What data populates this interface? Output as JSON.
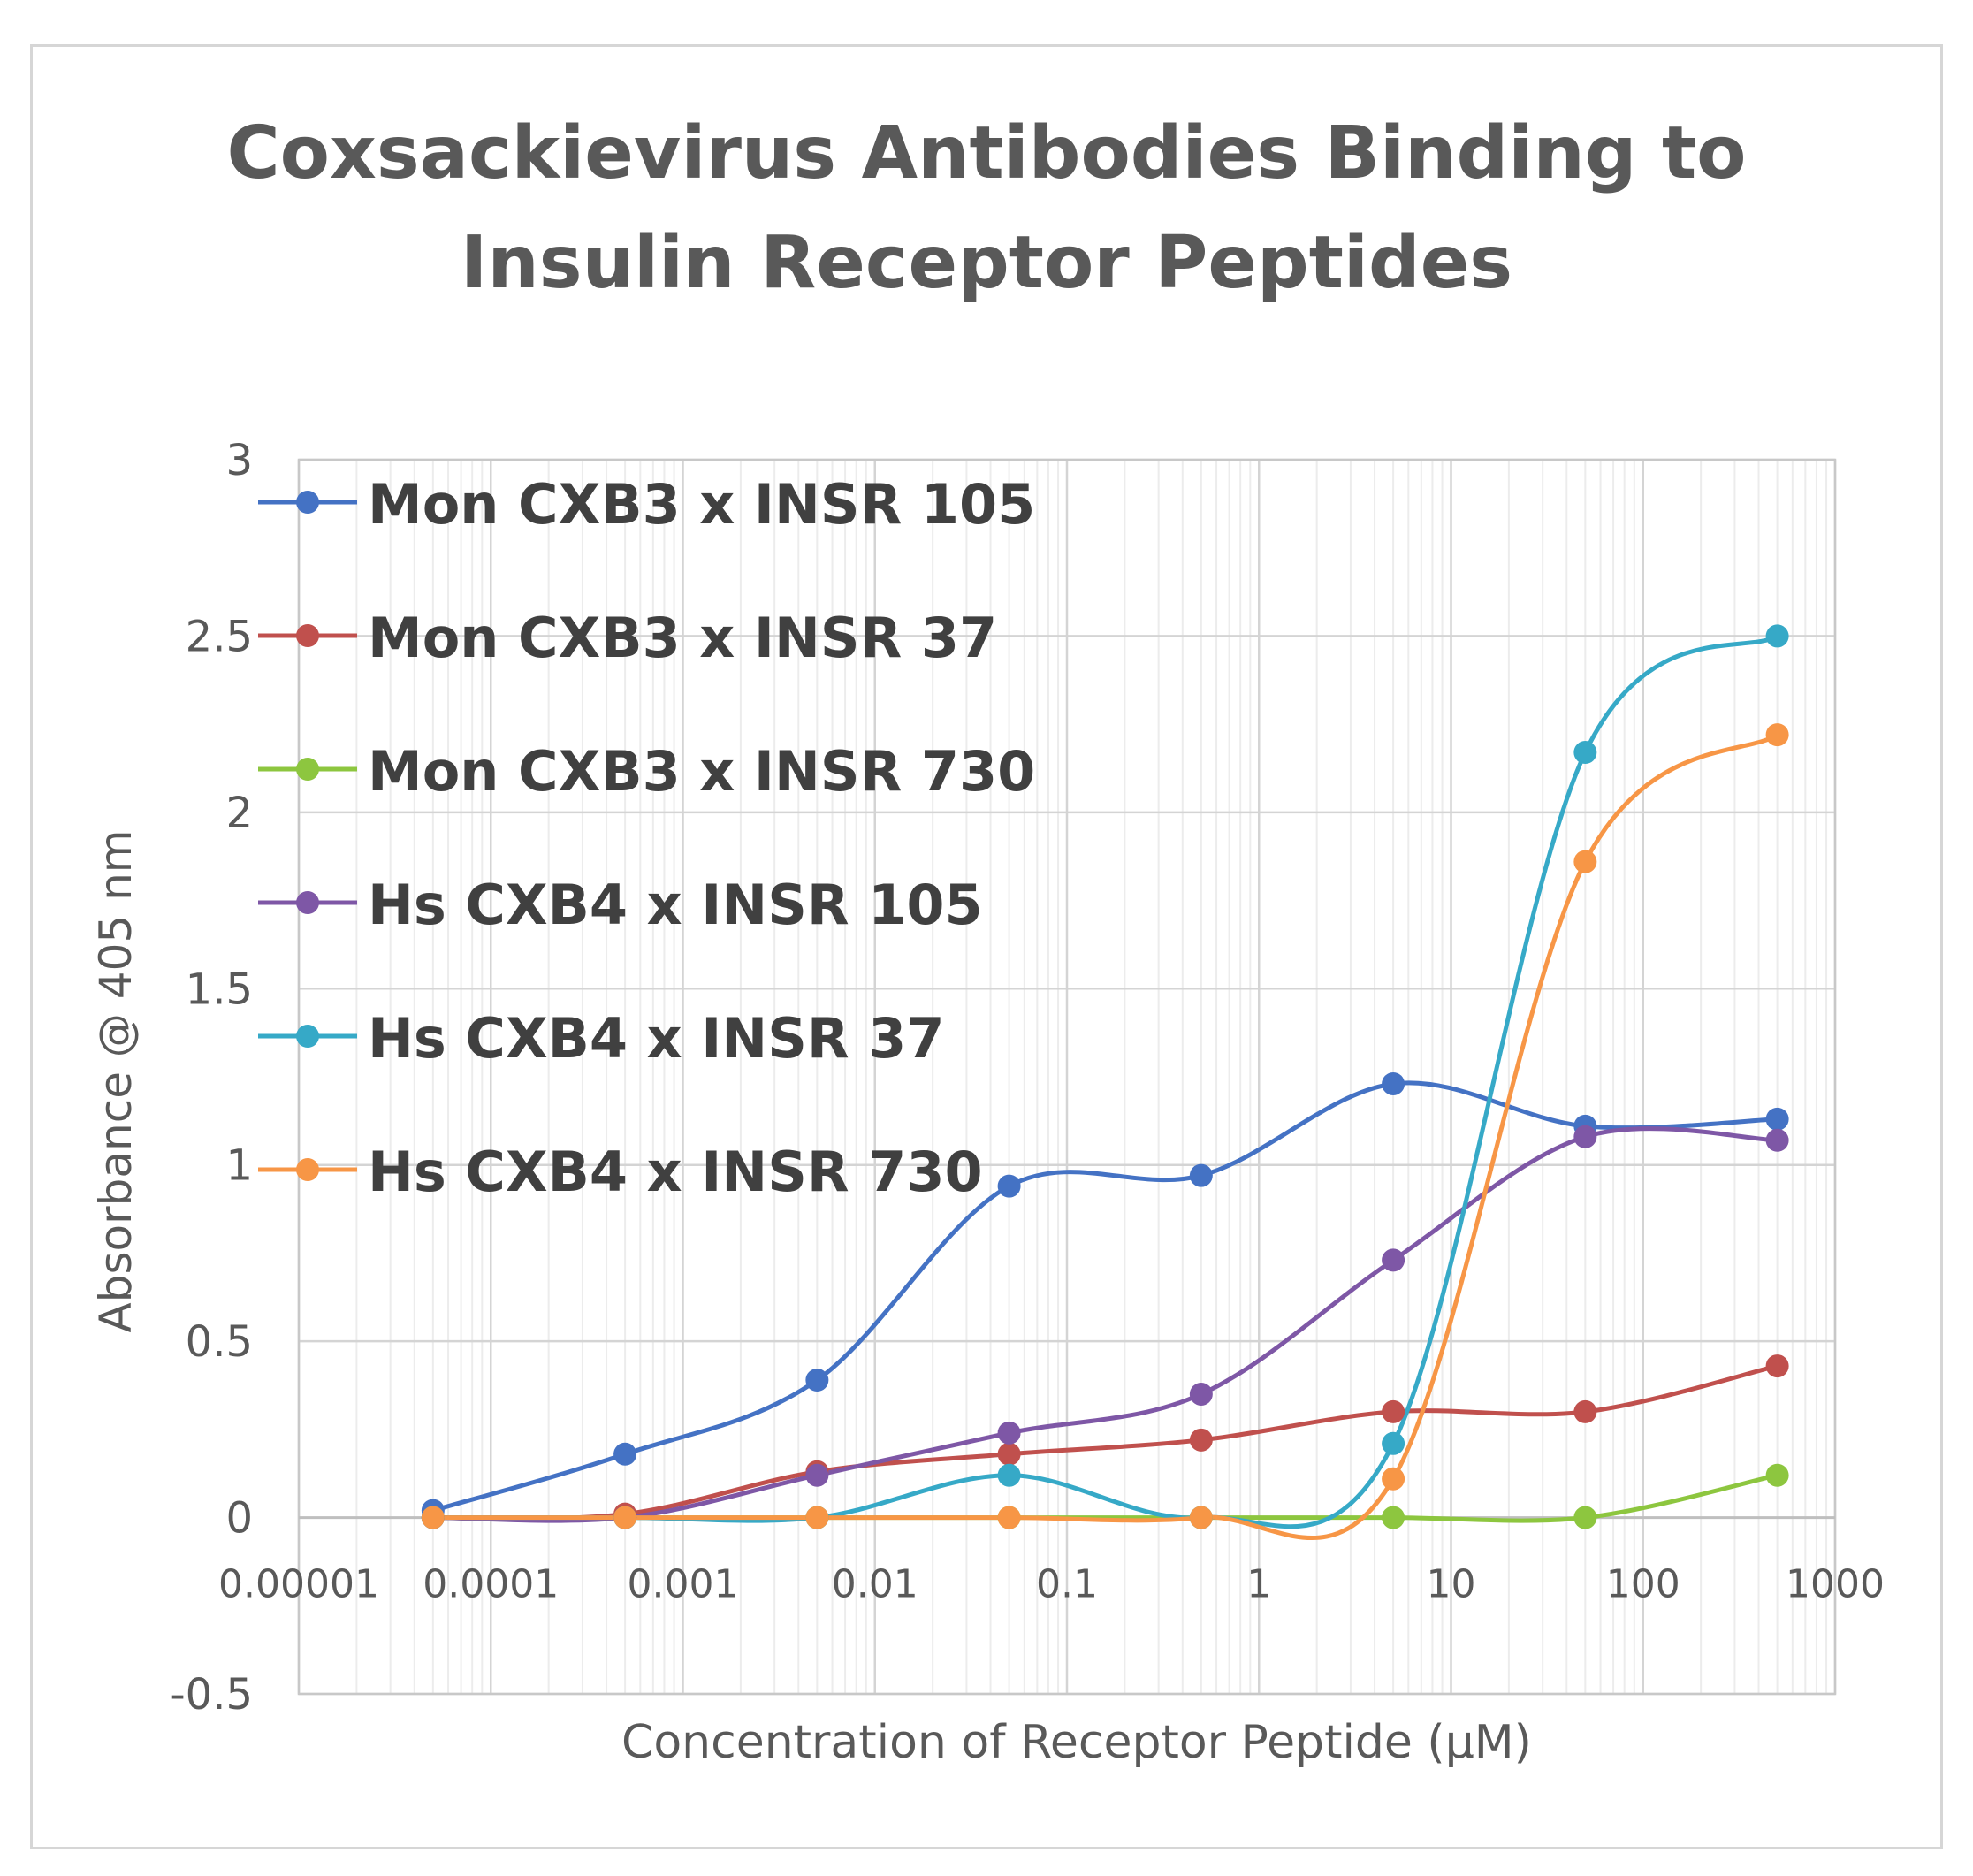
{
  "chart_data": {
    "type": "line",
    "title_lines": [
      "Coxsackievirus Antibodies Binding to",
      "Insulin Receptor Peptides"
    ],
    "xlabel": "Concentration of Receptor Peptide (µM)",
    "ylabel": "Absorbance @ 405 nm",
    "x_scale": "log",
    "xlim": [
      1e-05,
      1000
    ],
    "ylim": [
      -0.5,
      3
    ],
    "x_ticks": [
      1e-05,
      0.0001,
      0.001,
      0.01,
      0.1,
      1,
      10,
      100,
      1000
    ],
    "x_tick_labels": [
      "0.00001",
      "0.0001",
      "0.001",
      "0.01",
      "0.1",
      "1",
      "10",
      "100",
      "1000"
    ],
    "y_ticks": [
      -0.5,
      0,
      0.5,
      1,
      1.5,
      2,
      2.5,
      3
    ],
    "y_tick_labels": [
      "-0.5",
      "0",
      "0.5",
      "1",
      "1.5",
      "2",
      "2.5",
      "3"
    ],
    "grid": true,
    "legend_position": "top-left",
    "smooth": true,
    "x": [
      5e-05,
      0.0005,
      0.005,
      0.05,
      0.5,
      5,
      50,
      500
    ],
    "series": [
      {
        "name": "Mon CXB3 x INSR 105",
        "color": "#4472C4",
        "values": [
          0.02,
          0.18,
          0.39,
          0.94,
          0.97,
          1.23,
          1.11,
          1.13
        ]
      },
      {
        "name": "Mon CXB3 x INSR 37",
        "color": "#C0504D",
        "values": [
          0.0,
          0.01,
          0.13,
          0.18,
          0.22,
          0.3,
          0.3,
          0.43
        ]
      },
      {
        "name": "Mon CXB3 x INSR 730",
        "color": "#8DC63F",
        "values": [
          0.0,
          0.0,
          0.0,
          0.0,
          0.0,
          0.0,
          0.0,
          0.12
        ]
      },
      {
        "name": "Hs CXB4 x INSR 105",
        "color": "#7E57A6",
        "values": [
          0.0,
          0.0,
          0.12,
          0.24,
          0.35,
          0.73,
          1.08,
          1.07
        ]
      },
      {
        "name": "Hs CXB4 x INSR 37",
        "color": "#36A9C7",
        "values": [
          0.0,
          0.0,
          0.0,
          0.12,
          0.0,
          0.21,
          2.17,
          2.5
        ]
      },
      {
        "name": "Hs CXB4 x INSR 730",
        "color": "#F79646",
        "values": [
          0.0,
          0.0,
          0.0,
          0.0,
          0.0,
          0.11,
          1.86,
          2.22
        ]
      }
    ]
  }
}
